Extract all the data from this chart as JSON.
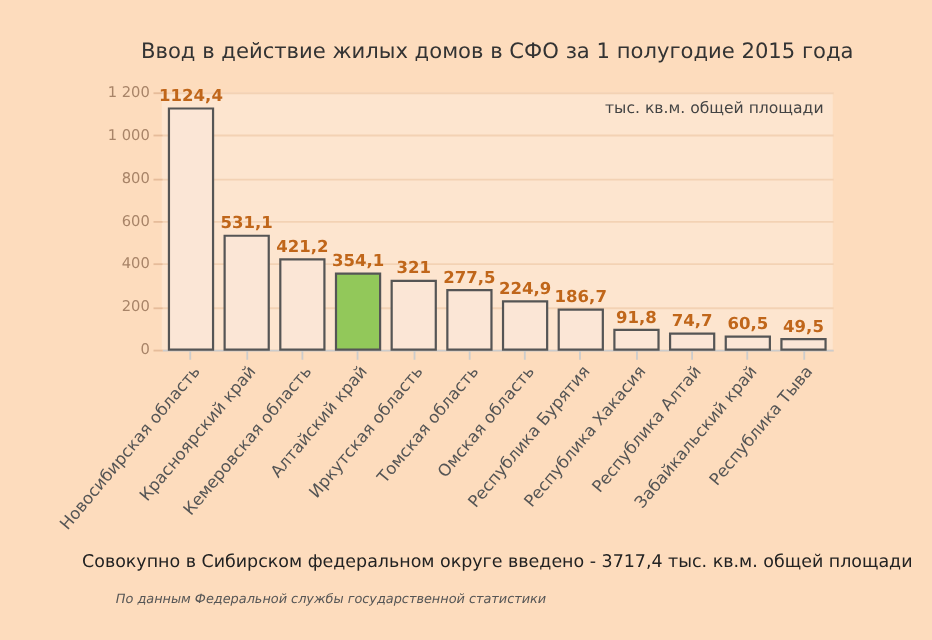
{
  "chart_data": {
    "type": "bar",
    "title": "Ввод в действие жилых домов в СФО за 1 полугодие 2015 года",
    "categories": [
      "Новосибирская область",
      "Красноярский край",
      "Кемеровская область",
      "Алтайский край",
      "Иркутская область",
      "Томская область",
      "Омская область",
      "Республика Бурятия",
      "Республика Хакасия",
      "Республика Алтай",
      "Забайкальский край",
      "Республика Тыва"
    ],
    "values": [
      1124.4,
      531.1,
      421.2,
      354.1,
      321,
      277.5,
      224.9,
      186.7,
      91.8,
      74.7,
      60.5,
      49.5
    ],
    "value_labels": [
      "1124,4",
      "531,1",
      "421,2",
      "354,1",
      "321",
      "277,5",
      "224,9",
      "186,7",
      "91,8",
      "74,7",
      "60,5",
      "49,5"
    ],
    "colors": [
      "#fbe6d6",
      "#fbe6d6",
      "#fbe6d6",
      "#92c85a",
      "#fbe6d6",
      "#fbe6d6",
      "#fbe6d6",
      "#fbe6d6",
      "#fbe6d6",
      "#fbe6d6",
      "#fbe6d6",
      "#fbe6d6"
    ],
    "ylim": [
      0,
      1200
    ],
    "yticks": [
      0,
      200,
      400,
      600,
      800,
      {
        "value": 1000,
        "label": "1 000"
      },
      {
        "value": 1200,
        "label": "1 200"
      }
    ],
    "grid": "y",
    "annotations": [
      "тыс. кв.м. общей площади",
      "Совокупно в Сибирском федеральном округе введено - 3717,4 тыс. кв.м. общей площади",
      "По данным Федеральной службы государственной статистики"
    ]
  }
}
